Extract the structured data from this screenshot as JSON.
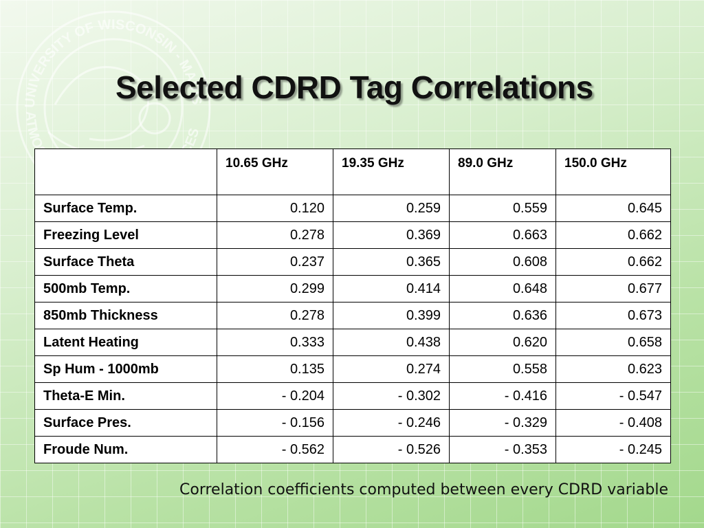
{
  "slide": {
    "title": "Selected CDRD Tag Correlations",
    "caption": "Correlation coefficients computed between every CDRD variable",
    "watermark": {
      "top_text": "UNIVERSITY OF WISCONSIN - MADISON",
      "bottom_text": "ATMOSPHERIC & OCEANIC SCIENCES"
    },
    "colors": {
      "background": "#b9e2a6",
      "title": "#111111"
    }
  },
  "table": {
    "headers": [
      "",
      "10.65 GHz",
      "19.35 GHz",
      "89.0 GHz",
      "150.0 GHz"
    ],
    "rows": [
      {
        "label": "Surface Temp.",
        "values": [
          "0.120",
          "0.259",
          "0.559",
          "0.645"
        ]
      },
      {
        "label": "Freezing Level",
        "values": [
          "0.278",
          "0.369",
          "0.663",
          "0.662"
        ]
      },
      {
        "label": "Surface Theta",
        "values": [
          "0.237",
          "0.365",
          "0.608",
          "0.662"
        ]
      },
      {
        "label": "500mb Temp.",
        "values": [
          "0.299",
          "0.414",
          "0.648",
          "0.677"
        ]
      },
      {
        "label": "850mb Thickness",
        "values": [
          "0.278",
          "0.399",
          "0.636",
          "0.673"
        ]
      },
      {
        "label": "Latent Heating",
        "values": [
          "0.333",
          "0.438",
          "0.620",
          "0.658"
        ]
      },
      {
        "label": "Sp Hum - 1000mb",
        "values": [
          "0.135",
          "0.274",
          "0.558",
          "0.623"
        ]
      },
      {
        "label": "Theta-E Min.",
        "values": [
          "- 0.204",
          "- 0.302",
          "- 0.416",
          "- 0.547"
        ]
      },
      {
        "label": "Surface Pres.",
        "values": [
          "- 0.156",
          "- 0.246",
          "- 0.329",
          "- 0.408"
        ]
      },
      {
        "label": "Froude Num.",
        "values": [
          "- 0.562",
          "- 0.526",
          "- 0.353",
          "- 0.245"
        ]
      }
    ]
  }
}
